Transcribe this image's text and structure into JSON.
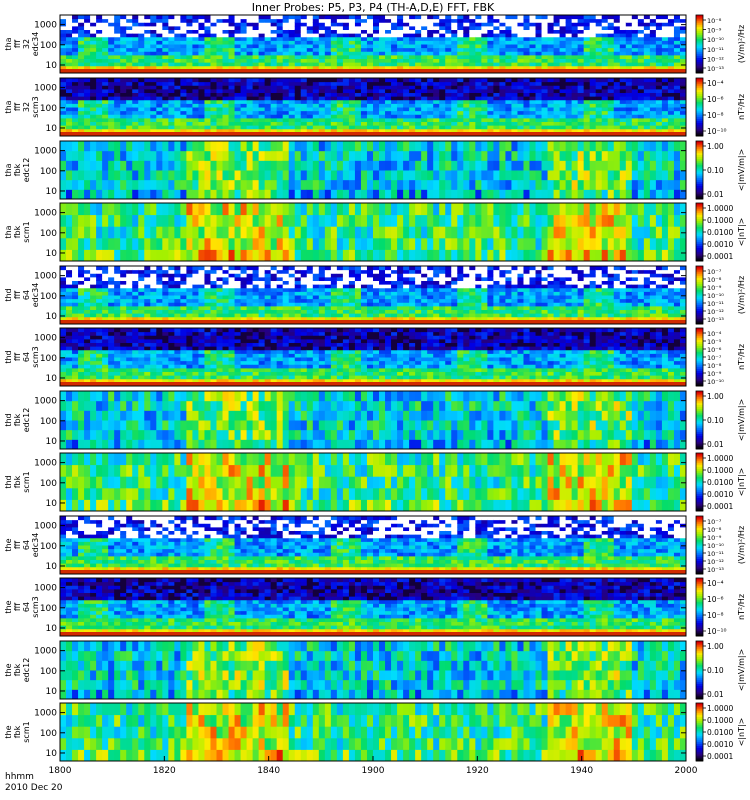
{
  "chart_data": {
    "type": "heatmap",
    "title": "Inner Probes: P5, P3, P4 (TH-A,D,E) FFT, FBK",
    "x_axis": {
      "range": [
        1800,
        2000
      ],
      "tick_labels": [
        "1800",
        "1820",
        "1840",
        "1900",
        "1920",
        "1940",
        "2000"
      ],
      "corner_labels": [
        "hhmm",
        "2010 Dec 20"
      ]
    },
    "panels": [
      {
        "ylabel": [
          "tha",
          "fff",
          "32",
          "edc34"
        ],
        "yticks": [
          "1000",
          "100",
          "10"
        ],
        "ylog": true,
        "cbar_label": "(V/m)²/Hz",
        "cbar_ticks": [
          "10⁻⁸",
          "10⁻⁹",
          "10⁻¹⁰",
          "10⁻¹¹",
          "10⁻¹²",
          "10⁻¹³"
        ],
        "kind": "fff_e"
      },
      {
        "ylabel": [
          "tha",
          "fff",
          "32",
          "scm3"
        ],
        "yticks": [
          "1000",
          "100",
          "10"
        ],
        "ylog": true,
        "cbar_label": "nT²/Hz",
        "cbar_ticks": [
          "10⁻⁴",
          "10⁻⁶",
          "10⁻⁸",
          "10⁻¹⁰"
        ],
        "kind": "fff_b"
      },
      {
        "ylabel": [
          "tha",
          "fbk",
          "edc12"
        ],
        "yticks": [
          "1000",
          "100",
          "10"
        ],
        "ylog": true,
        "cbar_label": "<|mV/m|>",
        "cbar_ticks": [
          "1.00",
          "0.10",
          "0.01"
        ],
        "kind": "fbk"
      },
      {
        "ylabel": [
          "tha",
          "fbk",
          "scm1"
        ],
        "yticks": [
          "1000",
          "100",
          "10"
        ],
        "ylog": true,
        "cbar_label": "<|nT|>",
        "cbar_ticks": [
          "1.0000",
          "0.1000",
          "0.0100",
          "0.0010",
          "0.0001"
        ],
        "kind": "fbk_scm"
      },
      {
        "ylabel": [
          "thd",
          "fff",
          "64",
          "edc34"
        ],
        "yticks": [
          "1000",
          "100",
          "10"
        ],
        "ylog": true,
        "cbar_label": "(V/m)²/Hz",
        "cbar_ticks": [
          "10⁻⁷",
          "10⁻⁸",
          "10⁻⁹",
          "10⁻¹⁰",
          "10⁻¹¹",
          "10⁻¹²",
          "10⁻¹³"
        ],
        "kind": "fff_e"
      },
      {
        "ylabel": [
          "thd",
          "fff",
          "64",
          "scm3"
        ],
        "yticks": [
          "1000",
          "100",
          "10"
        ],
        "ylog": true,
        "cbar_label": "nT²/Hz",
        "cbar_ticks": [
          "10⁻⁴",
          "10⁻⁵",
          "10⁻⁶",
          "10⁻⁷",
          "10⁻⁸",
          "10⁻⁹",
          "10⁻¹⁰"
        ],
        "kind": "fff_b"
      },
      {
        "ylabel": [
          "thd",
          "fbk",
          "edc12"
        ],
        "yticks": [
          "1000",
          "100",
          "10"
        ],
        "ylog": true,
        "cbar_label": "<|mV/m|>",
        "cbar_ticks": [
          "1.00",
          "0.10",
          "0.01"
        ],
        "kind": "fbk"
      },
      {
        "ylabel": [
          "thd",
          "fbk",
          "scm1"
        ],
        "yticks": [
          "1000",
          "100",
          "10"
        ],
        "ylog": true,
        "cbar_label": "<|nT|>",
        "cbar_ticks": [
          "1.0000",
          "0.1000",
          "0.0100",
          "0.0010",
          "0.0001"
        ],
        "kind": "fbk_scm"
      },
      {
        "ylabel": [
          "the",
          "fff",
          "64",
          "edc34"
        ],
        "yticks": [
          "1000",
          "100",
          "10"
        ],
        "ylog": true,
        "cbar_label": "(V/m)²/Hz",
        "cbar_ticks": [
          "10⁻⁷",
          "10⁻⁸",
          "10⁻⁹",
          "10⁻¹⁰",
          "10⁻¹¹",
          "10⁻¹²",
          "10⁻¹³"
        ],
        "kind": "fff_e"
      },
      {
        "ylabel": [
          "the",
          "fff",
          "64",
          "scm3"
        ],
        "yticks": [
          "1000",
          "100",
          "10"
        ],
        "ylog": true,
        "cbar_label": "nT²/Hz",
        "cbar_ticks": [
          "10⁻⁴",
          "10⁻⁶",
          "10⁻⁸",
          "10⁻¹⁰"
        ],
        "kind": "fff_b"
      },
      {
        "ylabel": [
          "the",
          "fbk",
          "edc12"
        ],
        "yticks": [
          "1000",
          "100",
          "10"
        ],
        "ylog": true,
        "cbar_label": "<|mV/m|>",
        "cbar_ticks": [
          "1.00",
          "0.10",
          "0.01"
        ],
        "kind": "fbk"
      },
      {
        "ylabel": [
          "the",
          "fbk",
          "scm1"
        ],
        "yticks": [
          "1000",
          "100",
          "10"
        ],
        "ylog": true,
        "cbar_label": "<|nT|>",
        "cbar_ticks": [
          "1.0000",
          "0.1000",
          "0.0100",
          "0.0010",
          "0.0001"
        ],
        "kind": "fbk_scm"
      }
    ]
  }
}
